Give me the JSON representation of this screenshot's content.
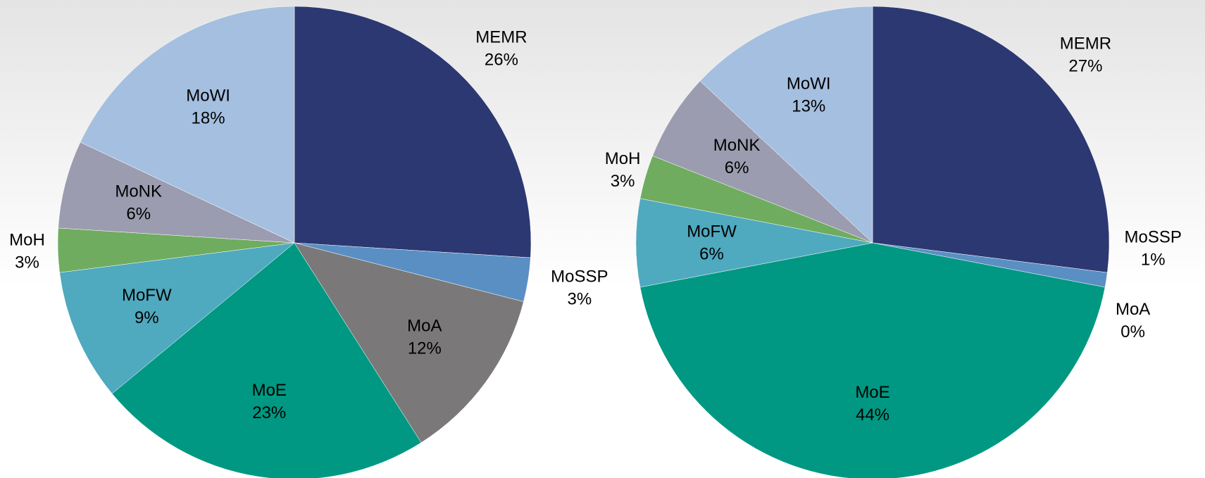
{
  "chart_data": [
    {
      "type": "pie",
      "categories": [
        "MEMR",
        "MoSSP",
        "MoA",
        "MoE",
        "MoFW",
        "MoH",
        "MoNK",
        "MoWI"
      ],
      "values": [
        26,
        3,
        12,
        23,
        9,
        3,
        6,
        18
      ],
      "value_labels": [
        "26%",
        "3%",
        "12%",
        "23%",
        "9%",
        "3%",
        "6%",
        "18%"
      ],
      "colors": [
        "#2c3872",
        "#5a8fc3",
        "#7a7878",
        "#009882",
        "#4fa9bf",
        "#6fac5f",
        "#9b9cb0",
        "#a5bfe0"
      ]
    },
    {
      "type": "pie",
      "categories": [
        "MEMR",
        "MoSSP",
        "MoA",
        "MoE",
        "MoFW",
        "MoH",
        "MoNK",
        "MoWI"
      ],
      "values": [
        27,
        1,
        0,
        44,
        6,
        3,
        6,
        13
      ],
      "value_labels": [
        "27%",
        "1%",
        "0%",
        "44%",
        "6%",
        "3%",
        "6%",
        "13%"
      ],
      "colors": [
        "#2c3872",
        "#5a8fc3",
        "#a0665a",
        "#009882",
        "#4fa9bf",
        "#6fac5f",
        "#9b9cb0",
        "#a5bfe0"
      ]
    }
  ]
}
